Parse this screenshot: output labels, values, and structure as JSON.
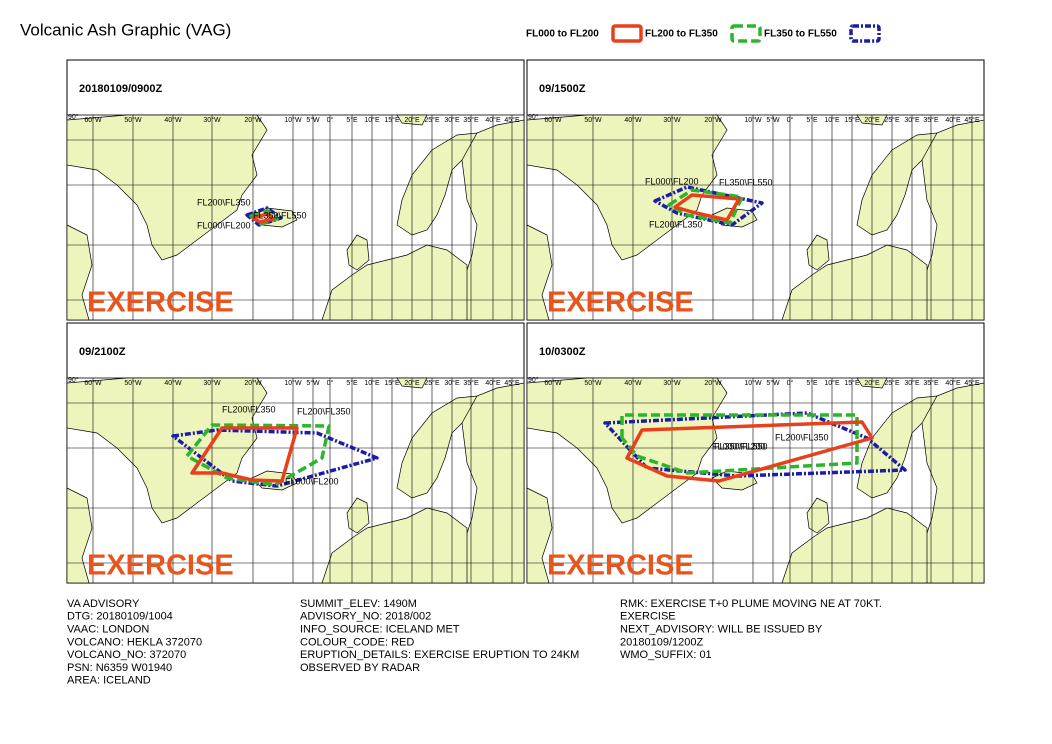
{
  "header": {
    "title": "Volcanic Ash Graphic (VAG)"
  },
  "legend": [
    "FL000 to FL200",
    "FL200 to FL350",
    "FL350 to FL550"
  ],
  "map": {
    "longitudes": [
      "60°W",
      "50°W",
      "40°W",
      "30°W",
      "20°W",
      "10°W",
      "5°W",
      "0°",
      "5°E",
      "10°E",
      "15°E",
      "20°E",
      "25°E",
      "30°E",
      "35°E",
      "40°E",
      "45°E"
    ],
    "corner": "90°"
  },
  "panels": [
    {
      "time": "20180109/0900Z",
      "labels": [
        "FL200\\FL350",
        "FL350\\FL550",
        "FL000\\FL200"
      ],
      "watermark": "EXERCISE"
    },
    {
      "time": "09/1500Z",
      "labels": [
        "FL000\\FL200",
        "FL350\\FL550",
        "FL200\\FL350"
      ],
      "watermark": "EXERCISE"
    },
    {
      "time": "09/2100Z",
      "labels": [
        "FL200\\FL350",
        "FL200\\FL350",
        "FL000\\FL200"
      ],
      "watermark": "EXERCISE"
    },
    {
      "time": "10/0300Z",
      "labels": [
        "FL200\\FL350",
        "FL000\\FL200",
        "FL350\\FL550"
      ],
      "watermark": "EXERCISE"
    }
  ],
  "advisory": {
    "columns": [
      [
        "VA ADVISORY",
        "DTG: 20180109/1004",
        "VAAC: LONDON",
        "VOLCANO: HEKLA 372070",
        "VOLCANO_NO: 372070",
        "PSN: N6359 W01940",
        "AREA: ICELAND"
      ],
      [
        "SUMMIT_ELEV: 1490M",
        "ADVISORY_NO: 2018/002",
        "INFO_SOURCE: ICELAND MET",
        "COLOUR_CODE: RED",
        "ERUPTION_DETAILS: EXERCISE ERUPTION TO 24KM",
        "OBSERVED BY RADAR"
      ],
      [
        "RMK: EXERCISE T+0 PLUME MOVING NE AT 70KT.",
        "EXERCISE",
        "NEXT_ADVISORY: WILL BE ISSUED BY",
        "20180109/1200Z",
        "WMO_SUFFIX: 01"
      ]
    ]
  }
}
